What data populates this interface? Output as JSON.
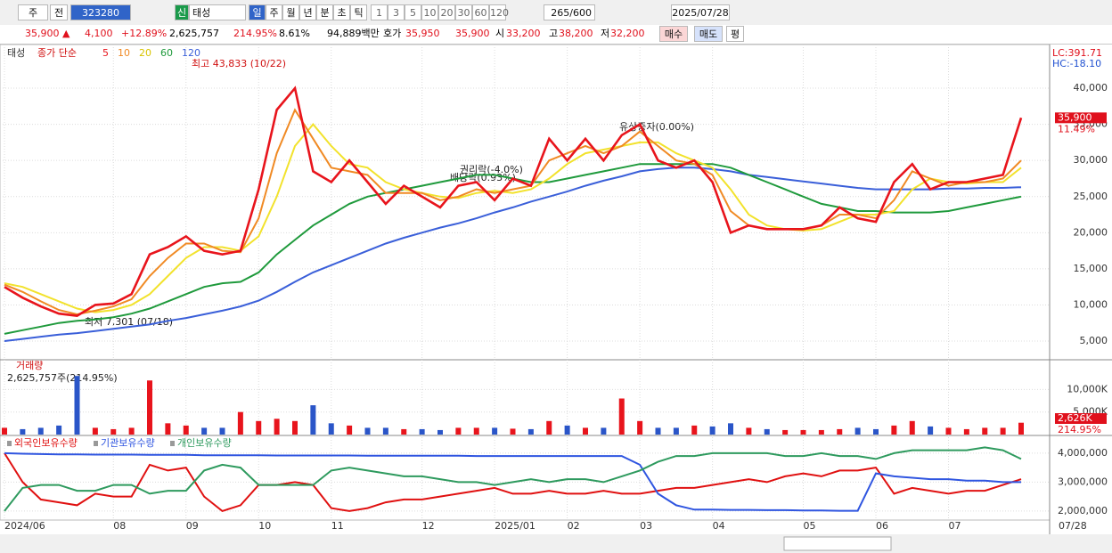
{
  "toolbar": {
    "period_type": "주",
    "prev": "전",
    "code": "323280",
    "badge": "신",
    "name": "태성",
    "units": [
      "일",
      "주",
      "월",
      "년",
      "분",
      "초",
      "틱"
    ],
    "steps": [
      "1",
      "3",
      "5",
      "10",
      "20",
      "30",
      "60",
      "120"
    ],
    "count": "265/600",
    "date": "2025/07/28"
  },
  "quote": {
    "price": "35,900 ▲",
    "change": "4,100",
    "change_pct": "+12.89%",
    "volume": "2,625,757",
    "volume_pct": "214.95%",
    "turnover": "8.61%",
    "amount": "94,889백만",
    "ask_label": "호가",
    "ask": "35,950",
    "bid": "35,900",
    "open_label": "시",
    "open": "33,200",
    "high_label": "고",
    "high": "38,200",
    "low_label": "저",
    "low": "32,200",
    "buy": "매수",
    "sell": "매도",
    "eval": "평"
  },
  "chart_data": [
    {
      "type": "line",
      "name": "태성",
      "legend_prefix": "종가 단순",
      "lc": "LC:391.71",
      "hc": "HC:-18.10",
      "last": {
        "value": 35900,
        "label": "35,900"
      },
      "last_pct": "11.49%",
      "annotations": [
        "최고 43,833 (10/22)",
        "최저 7,301 (07/18)",
        "권리락(-4.0%)",
        "배당락(0.93%)",
        "유상증자(0.00%)"
      ],
      "categories": [
        "2024/06",
        null,
        null,
        null,
        null,
        null,
        "08",
        null,
        null,
        null,
        "09",
        null,
        null,
        null,
        "10",
        null,
        null,
        null,
        "11",
        null,
        null,
        null,
        null,
        "12",
        null,
        null,
        null,
        "2025/01",
        null,
        null,
        null,
        "02",
        null,
        null,
        null,
        "03",
        null,
        null,
        null,
        "04",
        null,
        null,
        null,
        null,
        "05",
        null,
        null,
        null,
        "06",
        null,
        null,
        null,
        "07",
        null,
        null,
        null,
        null
      ],
      "ylim": [
        2660,
        45800
      ],
      "yticks": [
        {
          "value": 5000,
          "label": "5,000"
        },
        {
          "value": 10000,
          "label": "10,000"
        },
        {
          "value": 15000,
          "label": "15,000"
        },
        {
          "value": 20000,
          "label": "20,000"
        },
        {
          "value": 25000,
          "label": "25,000"
        },
        {
          "value": 30000,
          "label": "30,000"
        },
        {
          "value": 35000,
          "label": "35,000"
        },
        {
          "value": 40000,
          "label": "40,000"
        }
      ],
      "grid": true,
      "series": [
        {
          "name": "120",
          "color": "#3a5fd9",
          "values": [
            5000,
            5300,
            5600,
            5900,
            6100,
            6400,
            6700,
            7000,
            7300,
            7800,
            8200,
            8700,
            9200,
            9800,
            10600,
            11800,
            13200,
            14500,
            15500,
            16500,
            17500,
            18500,
            19300,
            20000,
            20700,
            21300,
            22000,
            22800,
            23500,
            24300,
            25000,
            25700,
            26500,
            27200,
            27800,
            28500,
            28800,
            29000,
            29000,
            28800,
            28500,
            28000,
            27700,
            27400,
            27100,
            26800,
            26500,
            26200,
            26000,
            26000,
            26000,
            26000,
            26100,
            26100,
            26200,
            26200,
            26300
          ]
        },
        {
          "name": "60",
          "color": "#1f9a3c",
          "values": [
            6000,
            6500,
            7000,
            7500,
            7800,
            8000,
            8300,
            8800,
            9500,
            10500,
            11500,
            12500,
            13000,
            13200,
            14500,
            17000,
            19000,
            21000,
            22500,
            24000,
            25000,
            25500,
            26000,
            26500,
            27000,
            27500,
            28000,
            28000,
            27500,
            27000,
            27000,
            27500,
            28000,
            28500,
            29000,
            29500,
            29500,
            29500,
            29500,
            29500,
            29000,
            28000,
            27000,
            26000,
            25000,
            24000,
            23500,
            23000,
            23000,
            22800,
            22800,
            22800,
            23000,
            23500,
            24000,
            24500,
            25000
          ]
        },
        {
          "name": "20",
          "color": "#f2e22c",
          "values": [
            13000,
            12500,
            11500,
            10500,
            9500,
            9000,
            9300,
            10000,
            11500,
            14000,
            16500,
            18000,
            18000,
            17500,
            19500,
            25000,
            32000,
            35000,
            32000,
            29500,
            29000,
            27000,
            26000,
            25500,
            25000,
            24800,
            25500,
            25800,
            25500,
            26000,
            27500,
            29500,
            31000,
            31500,
            32000,
            32500,
            32500,
            31000,
            30000,
            29000,
            26000,
            22500,
            21000,
            20500,
            20300,
            20500,
            21500,
            22500,
            22500,
            23000,
            26000,
            27500,
            27000,
            26800,
            27000,
            27000,
            29000
          ]
        },
        {
          "name": "10",
          "color": "#f08a24",
          "values": [
            12800,
            11800,
            10500,
            9300,
            8700,
            9200,
            9800,
            10800,
            14000,
            16500,
            18500,
            18500,
            17500,
            17300,
            22000,
            31000,
            37000,
            33000,
            29000,
            28500,
            28000,
            25500,
            25500,
            25500,
            24500,
            25000,
            26000,
            25500,
            26000,
            26500,
            30000,
            31000,
            32000,
            31000,
            32000,
            34000,
            32000,
            30000,
            29500,
            28000,
            23000,
            21000,
            20500,
            20500,
            20500,
            21000,
            22500,
            22500,
            22000,
            24500,
            28500,
            27500,
            26500,
            27000,
            27000,
            27500,
            30000
          ]
        },
        {
          "name": "5",
          "color": "#e8141c",
          "values": [
            12500,
            11000,
            9800,
            8800,
            8500,
            10000,
            10200,
            11500,
            17000,
            18000,
            19500,
            17500,
            17000,
            17500,
            26000,
            37000,
            40000,
            28500,
            27000,
            30000,
            27000,
            24000,
            26500,
            25000,
            23500,
            26500,
            27000,
            24500,
            27500,
            26500,
            33000,
            30000,
            33000,
            30000,
            33500,
            35000,
            30000,
            29000,
            30000,
            27000,
            20000,
            21000,
            20500,
            20500,
            20500,
            21000,
            23500,
            22000,
            21500,
            27000,
            29500,
            26000,
            27000,
            27000,
            27500,
            28000,
            35900
          ]
        }
      ]
    },
    {
      "type": "bar",
      "name": "거래량",
      "summary": "2,625,757주(214.95%)",
      "last": {
        "value": 2626,
        "label": "2,626K"
      },
      "last_pct": "214.95%",
      "ylim": [
        0,
        16000
      ],
      "yticks": [
        {
          "value": 5000,
          "label": "5,000K"
        },
        {
          "value": 10000,
          "label": "10,000K"
        }
      ],
      "up_color": "#e8141c",
      "down_color": "#2a55c8",
      "values": [
        1500,
        1200,
        1500,
        2000,
        13000,
        1500,
        1200,
        1500,
        12000,
        2500,
        2000,
        1500,
        1500,
        5000,
        3000,
        3500,
        3000,
        6500,
        2500,
        2000,
        1500,
        1500,
        1200,
        1200,
        1000,
        1500,
        1500,
        1500,
        1300,
        1200,
        3000,
        2000,
        1500,
        1500,
        8000,
        3000,
        1500,
        1500,
        2000,
        1800,
        2500,
        1500,
        1200,
        1000,
        1000,
        1000,
        1200,
        1500,
        1200,
        2000,
        3000,
        1800,
        1500,
        1200,
        1500,
        1500,
        2626
      ]
    },
    {
      "type": "line",
      "x_end_label": "07/28",
      "ylim": [
        1750000,
        4520000
      ],
      "yticks": [
        {
          "value": 2000000,
          "label": "2,000,000"
        },
        {
          "value": 3000000,
          "label": "3,000,000"
        },
        {
          "value": 4000000,
          "label": "4,000,000"
        }
      ],
      "series": [
        {
          "name": "외국인보유수량",
          "color": "#e01010",
          "values": [
            4000000,
            3000000,
            2400000,
            2300000,
            2200000,
            2600000,
            2500000,
            2500000,
            3600000,
            3400000,
            3500000,
            2500000,
            2000000,
            2200000,
            2900000,
            2900000,
            3000000,
            2900000,
            2100000,
            2000000,
            2100000,
            2300000,
            2400000,
            2400000,
            2500000,
            2600000,
            2700000,
            2800000,
            2600000,
            2600000,
            2700000,
            2600000,
            2600000,
            2700000,
            2600000,
            2600000,
            2700000,
            2800000,
            2800000,
            2900000,
            3000000,
            3100000,
            3000000,
            3200000,
            3300000,
            3200000,
            3400000,
            3400000,
            3500000,
            2600000,
            2800000,
            2700000,
            2600000,
            2700000,
            2700000,
            2900000,
            3100000
          ]
        },
        {
          "name": "기관보유수량",
          "color": "#2f55e0",
          "values": [
            4000000,
            3980000,
            3970000,
            3960000,
            3960000,
            3950000,
            3950000,
            3950000,
            3940000,
            3940000,
            3940000,
            3930000,
            3930000,
            3930000,
            3930000,
            3920000,
            3920000,
            3920000,
            3920000,
            3920000,
            3910000,
            3910000,
            3910000,
            3910000,
            3910000,
            3910000,
            3900000,
            3900000,
            3900000,
            3900000,
            3900000,
            3900000,
            3900000,
            3900000,
            3900000,
            3600000,
            2600000,
            2200000,
            2050000,
            2050000,
            2040000,
            2040000,
            2030000,
            2030000,
            2020000,
            2020000,
            2010000,
            2010000,
            3300000,
            3200000,
            3150000,
            3100000,
            3100000,
            3050000,
            3050000,
            3000000,
            3000000
          ]
        },
        {
          "name": "개인보유수량",
          "color": "#2e9a5e",
          "values": [
            2000000,
            2800000,
            2900000,
            2900000,
            2700000,
            2700000,
            2900000,
            2900000,
            2600000,
            2700000,
            2700000,
            3400000,
            3600000,
            3500000,
            2900000,
            2900000,
            2900000,
            2900000,
            3400000,
            3500000,
            3400000,
            3300000,
            3200000,
            3200000,
            3100000,
            3000000,
            3000000,
            2900000,
            3000000,
            3100000,
            3000000,
            3100000,
            3100000,
            3000000,
            3200000,
            3400000,
            3700000,
            3900000,
            3900000,
            4000000,
            4000000,
            4000000,
            4000000,
            3900000,
            3900000,
            4000000,
            3900000,
            3900000,
            3800000,
            4000000,
            4100000,
            4100000,
            4100000,
            4100000,
            4200000,
            4100000,
            3800000
          ]
        }
      ]
    }
  ]
}
